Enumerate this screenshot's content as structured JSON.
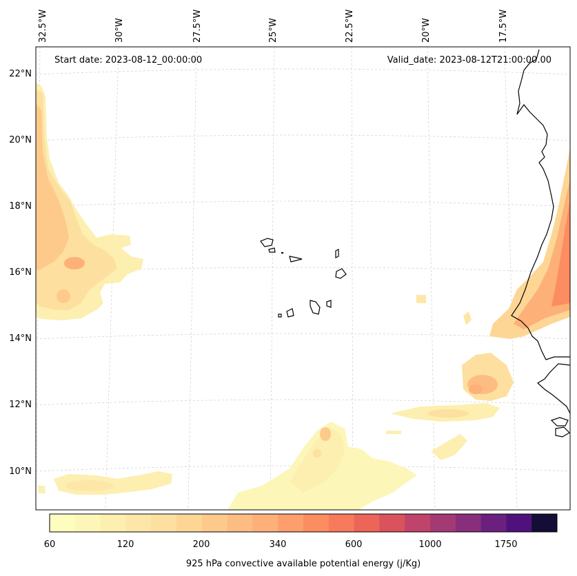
{
  "header": {
    "start_date": "Start date: 2023-08-12_00:00:00",
    "valid_date": "Valid_date: 2023-08-12T21:00:00.00"
  },
  "longitude_labels": [
    "32.5°W",
    "30°W",
    "27.5°W",
    "25°W",
    "22.5°W",
    "20°W",
    "17.5°W"
  ],
  "latitude_labels": [
    "22°N",
    "20°N",
    "18°N",
    "16°N",
    "14°N",
    "12°N",
    "10°N"
  ],
  "colorbar": {
    "title": "925 hPa convective available potential energy (j/Kg)",
    "tick_labels": [
      "60",
      "120",
      "200",
      "340",
      "600",
      "1000",
      "1750"
    ],
    "colors": [
      "#fcfdbf",
      "#fcf6b8",
      "#fcefb0",
      "#fde7a8",
      "#fddfa0",
      "#fdd696",
      "#fdca8c",
      "#fdbd82",
      "#fdb078",
      "#fd9f6c",
      "#fc8d61",
      "#f67a5b",
      "#ec6558",
      "#d9525c",
      "#c0436b",
      "#a43a74",
      "#882f7c",
      "#6b2080",
      "#4f127c",
      "#140e36"
    ]
  },
  "colors": {
    "coastline": "#000000",
    "gridline": "#cccccc",
    "frame": "#000000"
  }
}
